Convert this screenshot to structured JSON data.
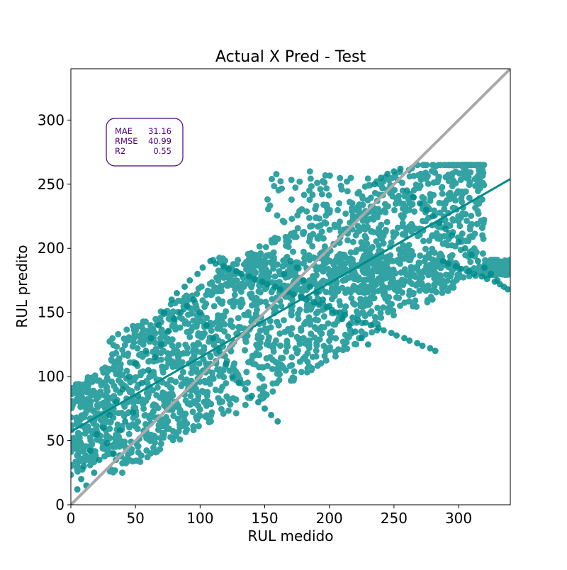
{
  "chart_data": {
    "type": "scatter",
    "title": "Actual X Pred - Test",
    "xlabel": "RUL medido",
    "ylabel": "RUL predito",
    "xlim": [
      0,
      340
    ],
    "ylim": [
      0,
      340
    ],
    "xticks": [
      0,
      50,
      100,
      150,
      200,
      250,
      300
    ],
    "yticks": [
      0,
      50,
      100,
      150,
      200,
      250,
      300
    ],
    "grid": false,
    "colors": {
      "points": "#008b8b",
      "regression_line": "#008b8b",
      "identity_line": "#a9a9a9",
      "metrics_box": "#4b0082"
    },
    "metrics": [
      {
        "label": "MAE",
        "value": "31.16"
      },
      {
        "label": "RMSE",
        "value": "40.99"
      },
      {
        "label": "R2",
        "value": "0.55"
      }
    ],
    "identity_line": {
      "x": [
        0,
        340
      ],
      "y": [
        0,
        340
      ]
    },
    "regression_line": {
      "x": [
        0,
        340
      ],
      "y": [
        57,
        254
      ]
    },
    "points_sample": {
      "x": [
        5,
        8,
        10,
        12,
        15,
        18,
        20,
        22,
        25,
        28,
        30,
        33,
        35,
        38,
        40,
        42,
        45,
        48,
        50,
        52,
        55,
        58,
        60,
        62,
        65,
        68,
        70,
        72,
        75,
        78,
        80,
        82,
        85,
        88,
        90,
        92,
        95,
        98,
        100,
        102,
        105,
        108,
        110,
        112,
        115,
        118,
        120,
        122,
        125,
        128,
        130,
        132,
        135,
        138,
        140,
        142,
        145,
        148,
        150,
        152,
        155,
        158,
        160,
        162,
        165,
        168,
        170,
        172,
        175,
        178,
        180,
        182,
        185,
        188,
        190,
        192,
        195,
        198,
        200,
        202,
        205,
        208,
        210,
        212,
        215,
        218,
        220,
        222,
        225,
        228,
        230,
        232,
        235,
        238,
        240,
        242,
        245,
        248,
        250,
        252,
        255,
        258,
        260,
        262,
        265,
        268,
        270,
        272,
        275,
        278,
        280,
        282,
        285,
        288,
        290,
        292,
        295,
        298,
        300,
        302,
        305,
        308,
        310,
        312,
        315,
        318,
        320,
        322,
        325,
        328,
        330,
        332,
        335,
        338
      ],
      "y": [
        12,
        20,
        30,
        15,
        42,
        25,
        55,
        35,
        60,
        48,
        70,
        40,
        80,
        58,
        90,
        65,
        100,
        72,
        110,
        85,
        95,
        120,
        105,
        130,
        115,
        140,
        125,
        150,
        135,
        160,
        145,
        165,
        150,
        170,
        155,
        175,
        160,
        180,
        150,
        185,
        140,
        190,
        130,
        188,
        120,
        186,
        110,
        184,
        100,
        182,
        95,
        180,
        90,
        178,
        85,
        176,
        80,
        174,
        75,
        172,
        70,
        170,
        65,
        168,
        180,
        166,
        190,
        164,
        185,
        162,
        175,
        160,
        170,
        158,
        165,
        156,
        160,
        154,
        155,
        152,
        150,
        150,
        145,
        148,
        140,
        146,
        135,
        144,
        130,
        142,
        125,
        140,
        250,
        138,
        255,
        136,
        258,
        134,
        260,
        132,
        262,
        130,
        245,
        128,
        240,
        126,
        235,
        124,
        230,
        122,
        225,
        120,
        220,
        190,
        215,
        188,
        210,
        186,
        205,
        184,
        200,
        182,
        195,
        180,
        190,
        178,
        185,
        176,
        180,
        174,
        175,
        172,
        170,
        168
      ]
    }
  }
}
